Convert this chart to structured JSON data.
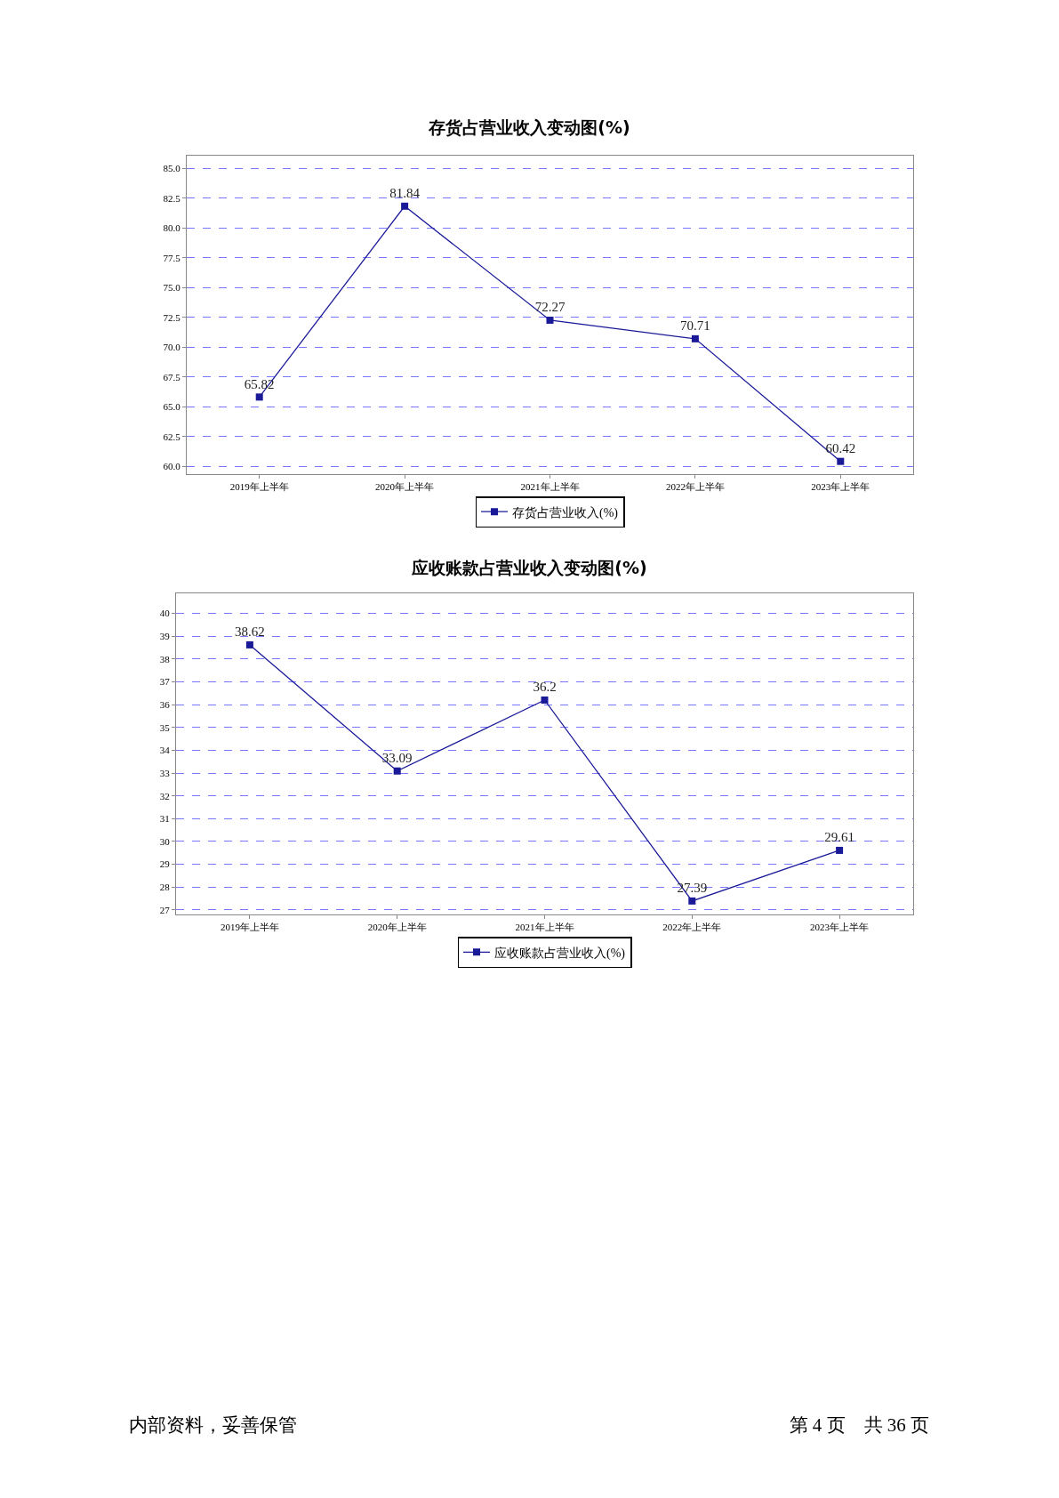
{
  "chart_data": [
    {
      "type": "line",
      "title": "存货占营业收入变动图(%)",
      "categories": [
        "2019年上半年",
        "2020年上半年",
        "2021年上半年",
        "2022年上半年",
        "2023年上半年"
      ],
      "series": [
        {
          "name": "存货占营业收入(%)",
          "color": "#1a1a99",
          "values": [
            65.82,
            81.84,
            72.27,
            70.71,
            60.42
          ]
        }
      ],
      "ylim": [
        59.35,
        86.08
      ],
      "yticks": [
        {
          "value": 60,
          "label": "60.0"
        },
        {
          "value": 62.5,
          "label": "62.5"
        },
        {
          "value": 65,
          "label": "65.0"
        },
        {
          "value": 67.5,
          "label": "67.5"
        },
        {
          "value": 70,
          "label": "70.0"
        },
        {
          "value": 72.5,
          "label": "72.5"
        },
        {
          "value": 75,
          "label": "75.0"
        },
        {
          "value": 77.5,
          "label": "77.5"
        },
        {
          "value": 80,
          "label": "80.0"
        },
        {
          "value": 82.5,
          "label": "82.5"
        },
        {
          "value": 85,
          "label": "85.0"
        }
      ],
      "grid": "y",
      "legend": "bottom",
      "marker": "square",
      "line_style": "solid",
      "data_labels": true
    },
    {
      "type": "line",
      "title": "应收账款占营业收入变动图(%)",
      "categories": [
        "2019年上半年",
        "2020年上半年",
        "2021年上半年",
        "2022年上半年",
        "2023年上半年"
      ],
      "series": [
        {
          "name": "应收账款占营业收入(%)",
          "color": "#1a1a99",
          "values": [
            38.62,
            33.09,
            36.2,
            27.39,
            29.61
          ]
        }
      ],
      "ylim": [
        26.8,
        40.88
      ],
      "yticks": [
        27,
        28,
        29,
        30,
        31,
        32,
        33,
        34,
        35,
        36,
        37,
        38,
        39,
        40
      ],
      "grid": "y",
      "legend": "bottom",
      "marker": "square",
      "line_style": "solid",
      "data_labels": true,
      "annotations": [
        "内部资料，妥善保管",
        "第 4 页　共 36 页"
      ]
    }
  ]
}
